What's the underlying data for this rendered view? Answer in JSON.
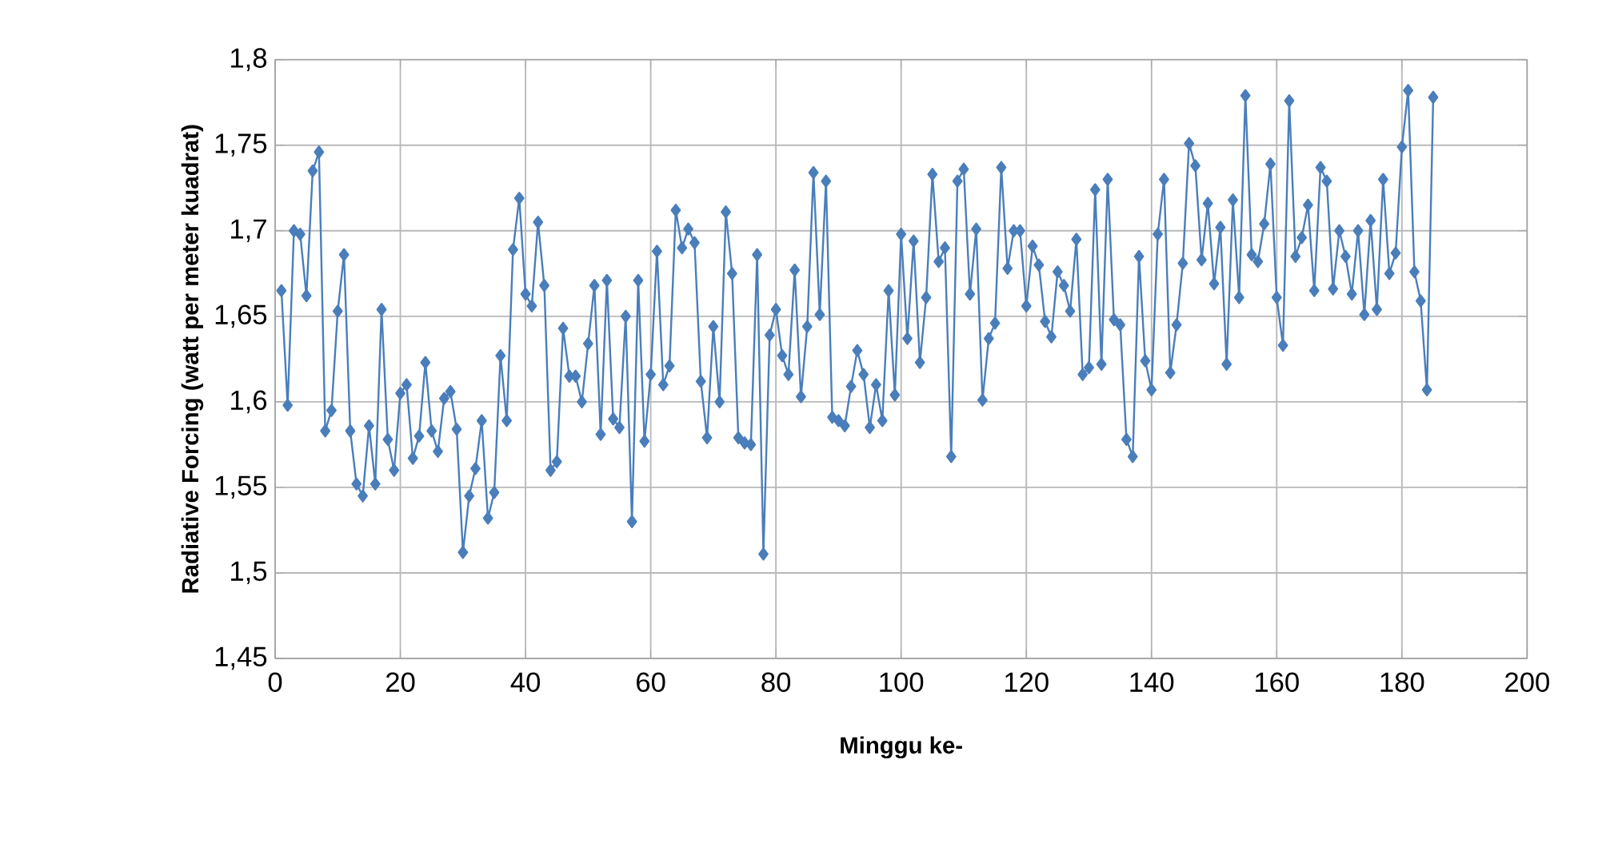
{
  "chart_data": {
    "type": "line",
    "xlabel": "Minggu ke-",
    "ylabel": "Radiative Forcing (watt per meter kuadrat)",
    "x": [
      1,
      2,
      3,
      4,
      5,
      6,
      7,
      8,
      9,
      10,
      11,
      12,
      13,
      14,
      15,
      16,
      17,
      18,
      19,
      20,
      21,
      22,
      23,
      24,
      25,
      26,
      27,
      28,
      29,
      30,
      31,
      32,
      33,
      34,
      35,
      36,
      37,
      38,
      39,
      40,
      41,
      42,
      43,
      44,
      45,
      46,
      47,
      48,
      49,
      50,
      51,
      52,
      53,
      54,
      55,
      56,
      57,
      58,
      59,
      60,
      61,
      62,
      63,
      64,
      65,
      66,
      67,
      68,
      69,
      70,
      71,
      72,
      73,
      74,
      75,
      76,
      77,
      78,
      79,
      80,
      81,
      82,
      83,
      84,
      85,
      86,
      87,
      88,
      89,
      90,
      91,
      92,
      93,
      94,
      95,
      96,
      97,
      98,
      99,
      100,
      101,
      102,
      103,
      104,
      105,
      106,
      107,
      108,
      109,
      110,
      111,
      112,
      113,
      114,
      115,
      116,
      117,
      118,
      119,
      120,
      121,
      122,
      123,
      124,
      125,
      126,
      127,
      128,
      129,
      130,
      131,
      132,
      133,
      134,
      135,
      136,
      137,
      138,
      139,
      140,
      141,
      142,
      143,
      144,
      145,
      146,
      147,
      148,
      149,
      150,
      151,
      152,
      153,
      154,
      155,
      156,
      157,
      158,
      159,
      160,
      161,
      162,
      163,
      164,
      165,
      166,
      167,
      168,
      169,
      170,
      171,
      172,
      173,
      174,
      175,
      176,
      177,
      178,
      179,
      180,
      181,
      182,
      183,
      184,
      185
    ],
    "series": [
      {
        "color": "#4a7ebb",
        "values": [
          1.665,
          1.598,
          1.7,
          1.698,
          1.662,
          1.735,
          1.746,
          1.583,
          1.595,
          1.653,
          1.686,
          1.583,
          1.552,
          1.545,
          1.586,
          1.552,
          1.654,
          1.578,
          1.56,
          1.605,
          1.61,
          1.567,
          1.58,
          1.623,
          1.583,
          1.571,
          1.602,
          1.606,
          1.584,
          1.512,
          1.545,
          1.561,
          1.589,
          1.532,
          1.547,
          1.627,
          1.589,
          1.689,
          1.719,
          1.663,
          1.656,
          1.705,
          1.668,
          1.56,
          1.565,
          1.643,
          1.615,
          1.615,
          1.6,
          1.634,
          1.668,
          1.581,
          1.671,
          1.59,
          1.585,
          1.65,
          1.53,
          1.671,
          1.577,
          1.616,
          1.688,
          1.61,
          1.621,
          1.712,
          1.69,
          1.701,
          1.693,
          1.612,
          1.579,
          1.644,
          1.6,
          1.711,
          1.675,
          1.579,
          1.576,
          1.575,
          1.686,
          1.511,
          1.639,
          1.654,
          1.627,
          1.616,
          1.677,
          1.603,
          1.644,
          1.734,
          1.651,
          1.729,
          1.591,
          1.589,
          1.586,
          1.609,
          1.63,
          1.616,
          1.585,
          1.61,
          1.589,
          1.665,
          1.604,
          1.698,
          1.637,
          1.694,
          1.623,
          1.661,
          1.733,
          1.682,
          1.69,
          1.568,
          1.729,
          1.736,
          1.663,
          1.701,
          1.601,
          1.637,
          1.646,
          1.737,
          1.678,
          1.7,
          1.7,
          1.656,
          1.691,
          1.68,
          1.647,
          1.638,
          1.676,
          1.668,
          1.653,
          1.695,
          1.616,
          1.62,
          1.724,
          1.622,
          1.73,
          1.648,
          1.645,
          1.578,
          1.568,
          1.685,
          1.624,
          1.607,
          1.698,
          1.73,
          1.617,
          1.645,
          1.681,
          1.751,
          1.738,
          1.683,
          1.716,
          1.669,
          1.702,
          1.622,
          1.718,
          1.661,
          1.779,
          1.686,
          1.682,
          1.704,
          1.739,
          1.661,
          1.633,
          1.776,
          1.685,
          1.696,
          1.715,
          1.665,
          1.737,
          1.729,
          1.666,
          1.7,
          1.685,
          1.663,
          1.7,
          1.651,
          1.706,
          1.654,
          1.73,
          1.675,
          1.687,
          1.749,
          1.782,
          1.676,
          1.659,
          1.607,
          1.778
        ]
      }
    ],
    "xlim": [
      0,
      200
    ],
    "xticks": [
      0,
      20,
      40,
      60,
      80,
      100,
      120,
      140,
      160,
      180,
      200
    ],
    "ylim": [
      1.45,
      1.8
    ],
    "yticks": [
      {
        "value": 1.45,
        "label": "1,45"
      },
      {
        "value": 1.5,
        "label": "1,5"
      },
      {
        "value": 1.55,
        "label": "1,55"
      },
      {
        "value": 1.6,
        "label": "1,6"
      },
      {
        "value": 1.65,
        "label": "1,65"
      },
      {
        "value": 1.7,
        "label": "1,7"
      },
      {
        "value": 1.75,
        "label": "1,75"
      },
      {
        "value": 1.8,
        "label": "1,8"
      }
    ],
    "grid": true,
    "marker": "diamond",
    "line_style": "solid"
  }
}
